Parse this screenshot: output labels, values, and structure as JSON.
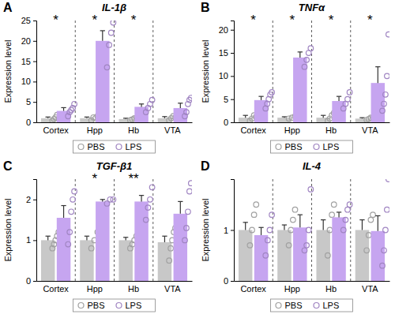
{
  "chart_data": [
    {
      "type": "bar",
      "panel_label": "A",
      "title": "IL-1β",
      "ylabel": "Expression level",
      "categories": [
        "Cortex",
        "Hpp",
        "Hb",
        "VTA"
      ],
      "ylim": [
        0,
        25
      ],
      "yticks": [
        0,
        5,
        10,
        15,
        20,
        25
      ],
      "legend": "bottom",
      "significance": [
        "*",
        "*",
        "*",
        null
      ],
      "series": [
        {
          "name": "PBS",
          "color": "#c8c8c8",
          "values": [
            1.0,
            1.0,
            0.8,
            1.0
          ],
          "errors": [
            0.3,
            0.3,
            0.2,
            0.4
          ],
          "points": [
            [
              0.4,
              0.8,
              1.2,
              1.8,
              0.9
            ],
            [
              0.5,
              1.2,
              1.0,
              1.5
            ],
            [
              0.5,
              0.7,
              1.0,
              1.0
            ],
            [
              0.5,
              1.0,
              1.5,
              1.2
            ]
          ]
        },
        {
          "name": "LPS",
          "color": "#c6a5f0",
          "values": [
            2.8,
            20.0,
            3.8,
            3.5
          ],
          "errors": [
            0.8,
            2.5,
            0.7,
            1.2
          ],
          "points": [
            [
              1.5,
              2.5,
              3.0,
              3.5,
              4.5
            ],
            [
              13.5,
              19.0,
              22.0,
              24.5
            ],
            [
              2.5,
              3.5,
              4.5,
              5.5
            ],
            [
              1.5,
              2.5,
              4.5,
              5.5,
              6.0
            ]
          ]
        }
      ]
    },
    {
      "type": "bar",
      "panel_label": "B",
      "title": "TNFα",
      "ylabel": "Expression level",
      "categories": [
        "Cortex",
        "Hpp",
        "Hb",
        "VTA"
      ],
      "ylim": [
        0,
        22
      ],
      "yticks": [
        0,
        5,
        10,
        15,
        20
      ],
      "legend": "bottom",
      "significance": [
        "*",
        "*",
        "*",
        "*"
      ],
      "series": [
        {
          "name": "PBS",
          "color": "#c8c8c8",
          "values": [
            1.0,
            1.0,
            1.0,
            0.8
          ],
          "errors": [
            0.5,
            0.2,
            0.5,
            0.2
          ],
          "points": [
            [
              0.3,
              0.8,
              1.5,
              1.2
            ],
            [
              0.8,
              1.0,
              1.3
            ],
            [
              0.3,
              0.8,
              1.5,
              2.0
            ],
            [
              0.5,
              0.7,
              1.0,
              1.0
            ]
          ]
        },
        {
          "name": "LPS",
          "color": "#c6a5f0",
          "values": [
            4.8,
            14.0,
            4.6,
            8.5
          ],
          "errors": [
            0.8,
            1.2,
            1.0,
            3.5
          ],
          "points": [
            [
              3.0,
              4.0,
              5.0,
              6.0,
              6.5
            ],
            [
              12.0,
              13.5,
              15.0,
              16.0
            ],
            [
              3.0,
              4.0,
              5.0,
              6.5
            ],
            [
              2.5,
              4.0,
              6.0,
              10.0,
              19.0
            ]
          ]
        }
      ]
    },
    {
      "type": "bar",
      "panel_label": "C",
      "title": "TGF-β1",
      "ylabel": "Expression level",
      "categories": [
        "Cortex",
        "Hpp",
        "Hb",
        "VTA"
      ],
      "ylim": [
        0,
        2.5
      ],
      "yticks": [
        0,
        1,
        2
      ],
      "legend": "bottom",
      "significance": [
        null,
        "*",
        "**",
        null
      ],
      "series": [
        {
          "name": "PBS",
          "color": "#c8c8c8",
          "values": [
            1.0,
            1.0,
            1.0,
            0.95
          ],
          "errors": [
            0.1,
            0.1,
            0.07,
            0.15
          ],
          "points": [
            [
              0.8,
              0.9,
              1.0,
              1.1,
              1.2
            ],
            [
              0.8,
              1.0,
              1.2
            ],
            [
              0.8,
              0.9,
              1.0,
              1.1
            ],
            [
              0.5,
              0.8,
              1.0,
              1.2,
              1.3
            ]
          ]
        },
        {
          "name": "LPS",
          "color": "#c6a5f0",
          "values": [
            1.55,
            1.95,
            1.95,
            1.65
          ],
          "errors": [
            0.3,
            0.05,
            0.15,
            0.3
          ],
          "points": [
            [
              0.9,
              1.2,
              1.7,
              2.0,
              2.2
            ],
            [
              1.9,
              2.0,
              2.0
            ],
            [
              1.5,
              1.8,
              2.0,
              2.3
            ],
            [
              1.0,
              1.3,
              1.7,
              2.2,
              2.4
            ]
          ]
        }
      ]
    },
    {
      "type": "bar",
      "panel_label": "D",
      "title": "IL-4",
      "ylabel": "Expression level",
      "categories": [
        "Cortex",
        "Hpp",
        "Hb",
        "VTA"
      ],
      "ylim": [
        0,
        2
      ],
      "yticks": [
        0,
        1
      ],
      "legend": "bottom",
      "significance": [
        null,
        null,
        null,
        null
      ],
      "series": [
        {
          "name": "PBS",
          "color": "#c8c8c8",
          "values": [
            1.0,
            1.0,
            1.0,
            1.0
          ],
          "errors": [
            0.15,
            0.1,
            0.2,
            0.2
          ],
          "points": [
            [
              0.7,
              1.0,
              1.3,
              1.5
            ],
            [
              0.7,
              1.0,
              1.2,
              1.4
            ],
            [
              0.5,
              1.0,
              1.3,
              1.5
            ],
            [
              0.6,
              0.9,
              1.2,
              1.3
            ]
          ]
        },
        {
          "name": "LPS",
          "color": "#c6a5f0",
          "values": [
            0.9,
            1.05,
            1.25,
            0.98
          ],
          "errors": [
            0.15,
            0.25,
            0.1,
            0.3
          ],
          "points": [
            [
              0.5,
              0.8,
              1.0,
              1.3
            ],
            [
              0.6,
              0.7,
              1.0,
              1.8
            ],
            [
              1.0,
              1.2,
              1.4,
              1.5
            ],
            [
              0.3,
              0.6,
              1.0,
              1.4,
              2.0
            ]
          ]
        }
      ]
    }
  ]
}
